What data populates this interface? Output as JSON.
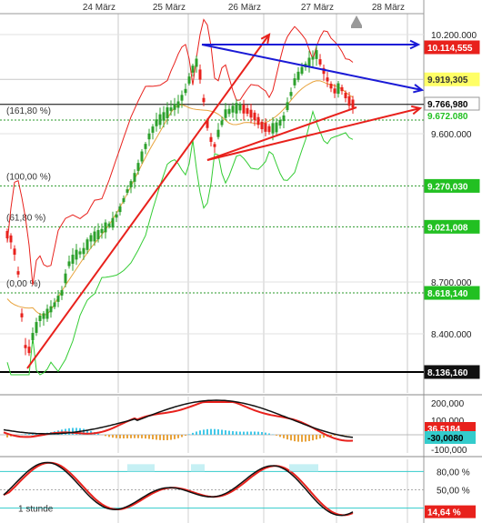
{
  "chart_data": [
    {
      "type": "candlestick",
      "x_tick_labels": [
        "24 März",
        "25 März",
        "26 März",
        "27 März",
        "28 März"
      ],
      "y_tick_labels": [
        "10.200.000",
        "9.600.000",
        "8.700.000",
        "8.400.000"
      ],
      "ylim": [
        8100000,
        10250000
      ],
      "grid": true,
      "fibonacci_levels": [
        {
          "label": "(161,80 %)",
          "value": 9700000
        },
        {
          "label": "(100,00 %)",
          "value": 9270030
        },
        {
          "label": "(61,80 %)",
          "value": 9021008
        },
        {
          "label": "(0,00 %)",
          "value": 8618140
        }
      ],
      "price_badges": [
        {
          "text": "10.114,555",
          "value": 10114555,
          "bg": "#e8211c",
          "fg": "#ffffff"
        },
        {
          "text": "9.919,305",
          "value": 9919305,
          "bg": "#ffff66",
          "fg": "#333333"
        },
        {
          "text": "9.766,980",
          "value": 9766980,
          "bg": "#ffffff",
          "fg": "#000000"
        },
        {
          "text": "9.270,030",
          "value": 9270030,
          "bg": "#22c022",
          "fg": "#ffffff"
        },
        {
          "text": "9.021,008",
          "value": 9021008,
          "bg": "#22c022",
          "fg": "#ffffff"
        },
        {
          "text": "8.618,140",
          "value": 8618140,
          "bg": "#22c022",
          "fg": "#ffffff"
        },
        {
          "text": "8.136,160",
          "value": 8136160,
          "bg": "#111111",
          "fg": "#ffffff"
        }
      ],
      "current_price": 9766980,
      "low_price": 8136160,
      "colors": {
        "bullish": "#2ca02c",
        "bearish": "#e8211c",
        "upper_band": "#e8211c",
        "lower_band": "#33cc33",
        "middle_band": "#e8a33c",
        "trendline_red": "#e8211c",
        "trendline_blue": "#1a1ad6"
      }
    },
    {
      "type": "macd",
      "y_tick_labels": [
        "200,000",
        "100,000",
        "-100,000"
      ],
      "ylim": [
        -100000,
        200000
      ],
      "badges": [
        {
          "text": "36,5184",
          "bg": "#e8211c",
          "fg": "#ffffff"
        },
        {
          "text": "-30,0080",
          "bg": "#33cccc",
          "fg": "#000000"
        }
      ]
    },
    {
      "type": "stochastic",
      "y_tick_labels": [
        "80,00 %",
        "50,00 %"
      ],
      "ylim": [
        0,
        100
      ],
      "levels": [
        80,
        20
      ],
      "badge": {
        "text": "14,64 %",
        "bg": "#e8211c",
        "fg": "#ffffff"
      },
      "interval_label": "1 stunde"
    }
  ]
}
